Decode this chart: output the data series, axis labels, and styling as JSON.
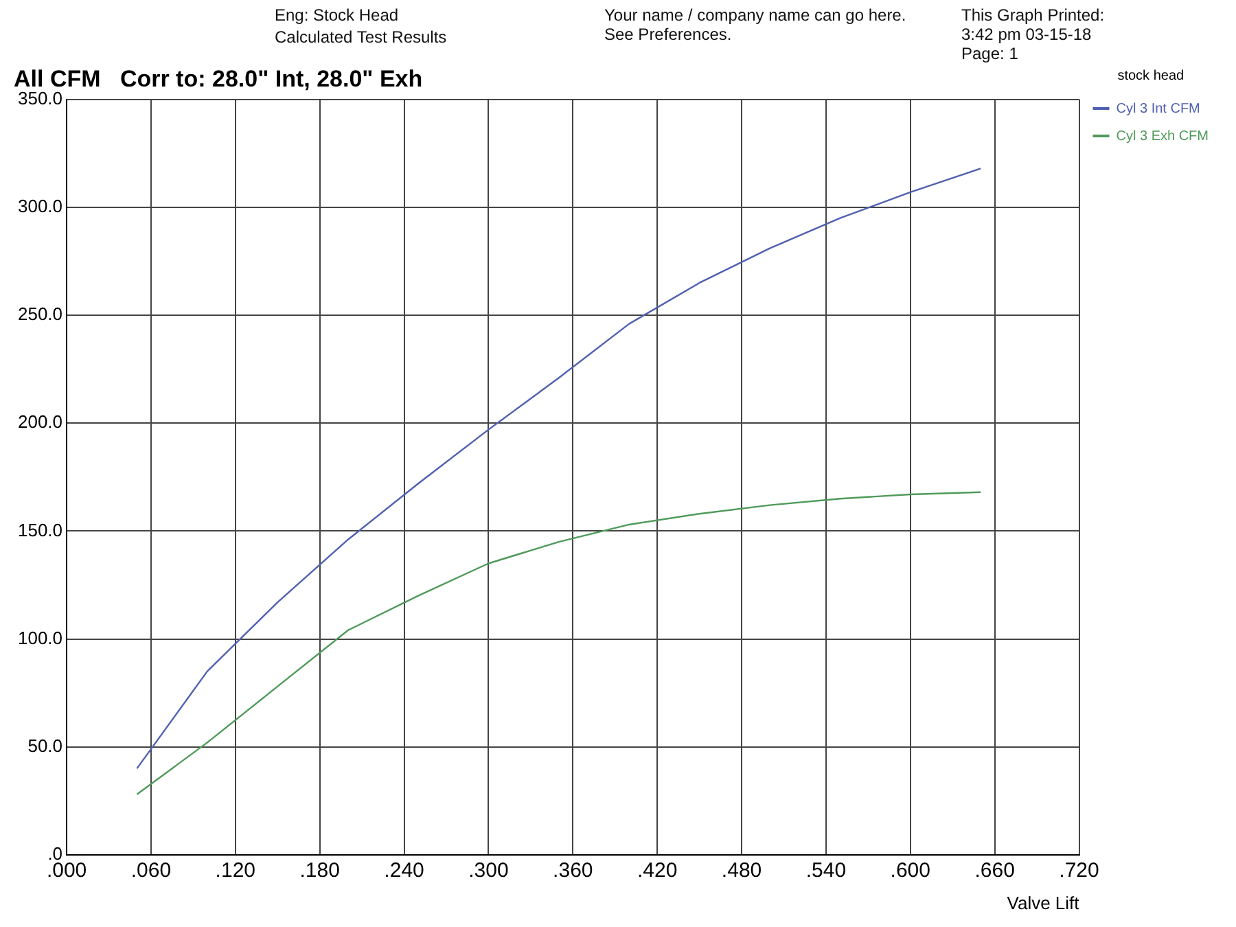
{
  "chart_data": {
    "type": "line",
    "title": "All CFM   Corr to: 28.0\" Int, 28.0\" Exh",
    "xlabel": "Valve Lift",
    "legend_title": "stock head",
    "annotations": [
      "Eng: Stock Head",
      "Calculated Test Results",
      "Your name / company name can go here.  See Preferences.",
      "This Graph Printed:",
      "3:42 pm 03-15-18",
      "Page: 1"
    ],
    "x": [
      0.05,
      0.1,
      0.15,
      0.2,
      0.25,
      0.3,
      0.35,
      0.4,
      0.45,
      0.5,
      0.55,
      0.6,
      0.65
    ],
    "series": [
      {
        "name": "Cyl 3 Int CFM",
        "color": "#5060b0",
        "values": [
          40,
          85,
          117,
          146,
          172,
          197,
          221,
          246,
          265,
          281,
          295,
          307,
          318
        ]
      },
      {
        "name": "Cyl 3 Exh CFM",
        "color": "#4f9a5a",
        "values": [
          28,
          52,
          78,
          104,
          120,
          135,
          145,
          153,
          158,
          162,
          165,
          167,
          168
        ]
      }
    ],
    "xlim": [
      0,
      0.72
    ],
    "xticks": [
      {
        "value": 0,
        "label": ".000"
      },
      {
        "value": 0.06,
        "label": ".060"
      },
      {
        "value": 0.12,
        "label": ".120"
      },
      {
        "value": 0.18,
        "label": ".180"
      },
      {
        "value": 0.24,
        "label": ".240"
      },
      {
        "value": 0.3,
        "label": ".300"
      },
      {
        "value": 0.36,
        "label": ".360"
      },
      {
        "value": 0.42,
        "label": ".420"
      },
      {
        "value": 0.48,
        "label": ".480"
      },
      {
        "value": 0.54,
        "label": ".540"
      },
      {
        "value": 0.6,
        "label": ".600"
      },
      {
        "value": 0.66,
        "label": ".660"
      },
      {
        "value": 0.72,
        "label": ".720"
      }
    ],
    "ylim": [
      0,
      350
    ],
    "yticks": [
      {
        "value": 0,
        "label": ".0"
      },
      {
        "value": 50,
        "label": "50.0"
      },
      {
        "value": 100,
        "label": "100.0"
      },
      {
        "value": 150,
        "label": "150.0"
      },
      {
        "value": 200,
        "label": "200.0"
      },
      {
        "value": 250,
        "label": "250.0"
      },
      {
        "value": 300,
        "label": "300.0"
      },
      {
        "value": 350,
        "label": "350.0"
      }
    ],
    "grid": true,
    "legend": "top right",
    "marker": "none",
    "line_style": "solid"
  }
}
